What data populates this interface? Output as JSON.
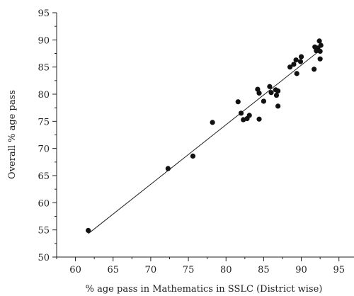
{
  "chart_data": {
    "type": "scatter",
    "title": "",
    "xlabel": "% age pass in Mathematics in SSLC (District wise)",
    "ylabel": "Overall % age pass",
    "xlim": [
      57.5,
      97
    ],
    "ylim": [
      50,
      95
    ],
    "xticks": [
      60,
      65,
      70,
      75,
      80,
      85,
      90,
      95
    ],
    "yticks": [
      50,
      55,
      60,
      65,
      70,
      75,
      80,
      85,
      90,
      95
    ],
    "grid": false,
    "points": [
      {
        "x": 61.7,
        "y": 54.9
      },
      {
        "x": 72.3,
        "y": 66.3
      },
      {
        "x": 75.6,
        "y": 68.6
      },
      {
        "x": 78.2,
        "y": 74.8
      },
      {
        "x": 81.6,
        "y": 78.6
      },
      {
        "x": 82.0,
        "y": 76.5
      },
      {
        "x": 82.3,
        "y": 75.3
      },
      {
        "x": 82.8,
        "y": 75.5
      },
      {
        "x": 83.1,
        "y": 76.1
      },
      {
        "x": 84.2,
        "y": 80.9
      },
      {
        "x": 84.4,
        "y": 80.2
      },
      {
        "x": 84.4,
        "y": 75.4
      },
      {
        "x": 85.0,
        "y": 78.7
      },
      {
        "x": 85.8,
        "y": 81.4
      },
      {
        "x": 86.0,
        "y": 80.3
      },
      {
        "x": 86.6,
        "y": 80.8
      },
      {
        "x": 86.7,
        "y": 79.8
      },
      {
        "x": 86.9,
        "y": 80.6
      },
      {
        "x": 86.9,
        "y": 77.8
      },
      {
        "x": 88.5,
        "y": 85.0
      },
      {
        "x": 89.0,
        "y": 85.5
      },
      {
        "x": 89.3,
        "y": 86.3
      },
      {
        "x": 89.4,
        "y": 83.8
      },
      {
        "x": 89.9,
        "y": 86.0
      },
      {
        "x": 90.0,
        "y": 86.9
      },
      {
        "x": 91.7,
        "y": 84.6
      },
      {
        "x": 91.8,
        "y": 88.7
      },
      {
        "x": 92.0,
        "y": 88.0
      },
      {
        "x": 92.2,
        "y": 88.5
      },
      {
        "x": 92.4,
        "y": 89.8
      },
      {
        "x": 92.5,
        "y": 87.9
      },
      {
        "x": 92.5,
        "y": 86.5
      },
      {
        "x": 92.6,
        "y": 89.0
      }
    ],
    "trendline": {
      "x": [
        61.7,
        92.6
      ],
      "y": [
        54.3,
        88.2
      ]
    }
  }
}
